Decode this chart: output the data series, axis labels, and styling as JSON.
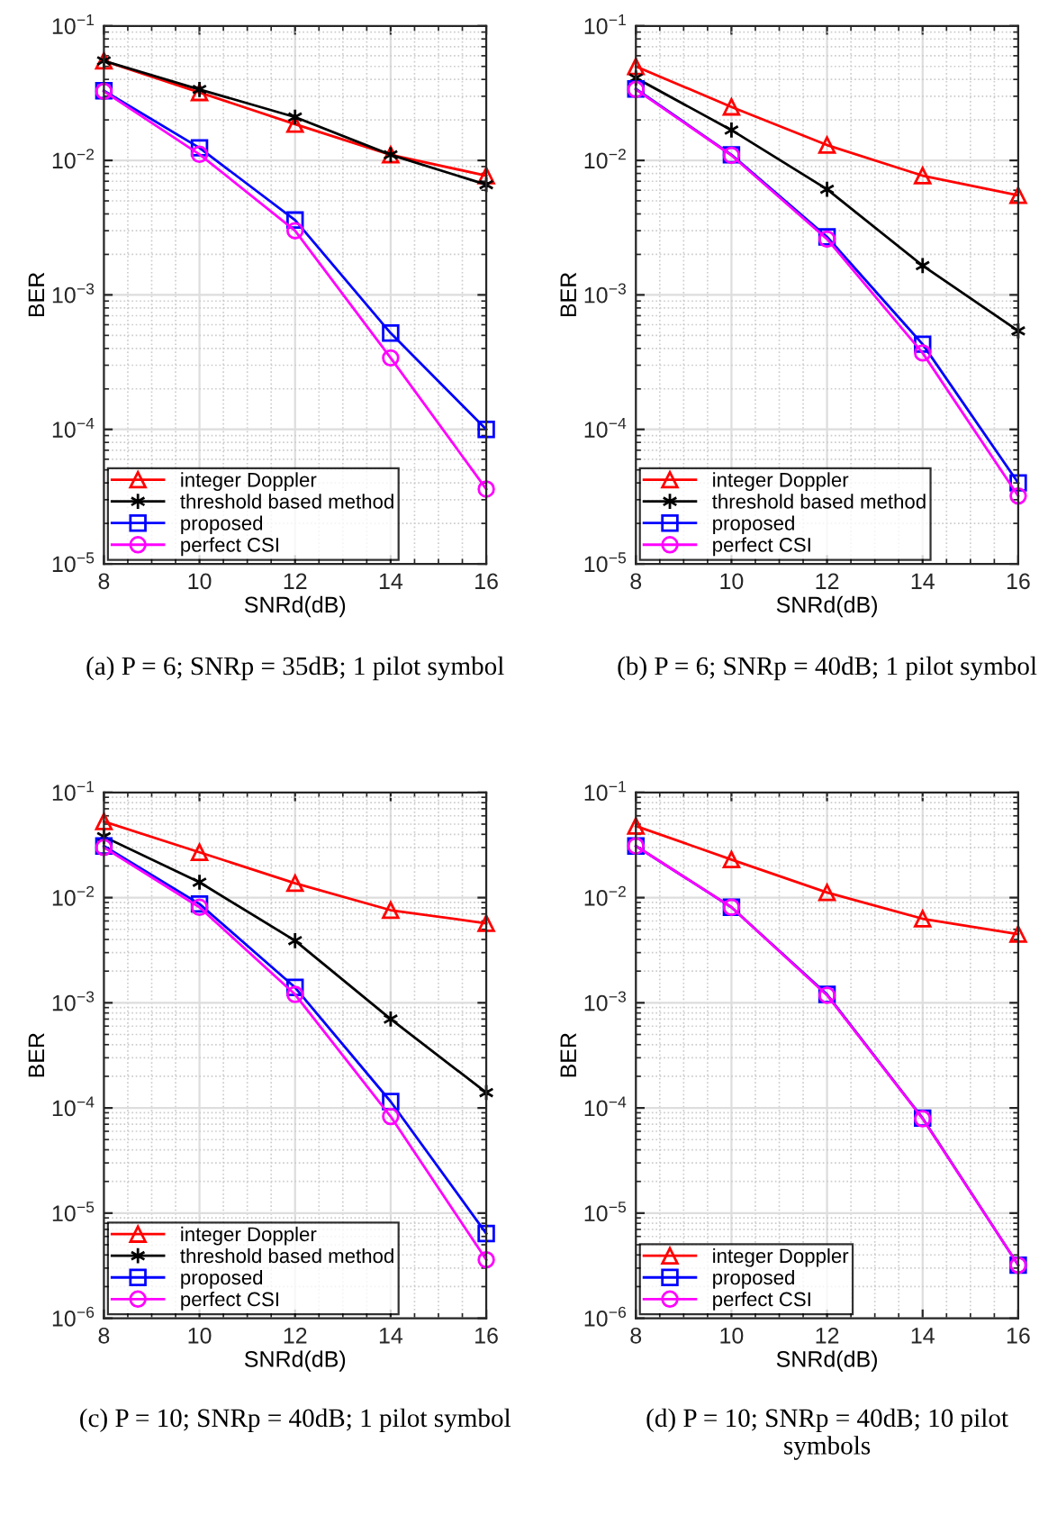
{
  "chart_data": [
    {
      "type": "line",
      "title": "(a) P = 6; SNRp = 35dB; 1 pilot symbol",
      "xlabel": "SNRd(dB)",
      "ylabel": "BER",
      "log": "y",
      "grid": true,
      "legend": "bottom left",
      "line_style": "solid",
      "x": [
        8,
        10,
        12,
        14,
        16
      ],
      "xlim": [
        8,
        16
      ],
      "xticks": [
        8,
        10,
        12,
        14,
        16
      ],
      "ylim": [
        1e-05,
        0.1
      ],
      "yticks": [
        {
          "value": 1e-05,
          "label": "10$^{−5}$"
        },
        {
          "value": 0.0001,
          "label": "10$^{−4}$"
        },
        {
          "value": 0.001,
          "label": "10$^{−3}$"
        },
        {
          "value": 0.01,
          "label": "10$^{−2}$"
        },
        {
          "value": 0.1,
          "label": "10$^{−1}$"
        }
      ],
      "series": [
        {
          "name": "integer Doppler",
          "color": "#ff0000",
          "marker": "triangle",
          "values": [
            0.055,
            0.032,
            0.0186,
            0.011,
            0.0077
          ]
        },
        {
          "name": "threshold based method",
          "color": "#000000",
          "marker": "cross",
          "values": [
            0.055,
            0.0337,
            0.021,
            0.011,
            0.0066
          ]
        },
        {
          "name": "proposed",
          "color": "#0000ff",
          "marker": "square",
          "values": [
            0.033,
            0.0124,
            0.0036,
            0.00052,
            0.0001
          ]
        },
        {
          "name": "perfect CSI",
          "color": "#ff00ff",
          "marker": "circle",
          "values": [
            0.0326,
            0.0111,
            0.003,
            0.00034,
            3.6e-05
          ]
        }
      ]
    },
    {
      "type": "line",
      "title": "(b) P = 6; SNRp = 40dB; 1 pilot symbol",
      "xlabel": "SNRd(dB)",
      "ylabel": "BER",
      "log": "y",
      "grid": true,
      "legend": "bottom left",
      "line_style": "solid",
      "x": [
        8,
        10,
        12,
        14,
        16
      ],
      "xlim": [
        8,
        16
      ],
      "xticks": [
        8,
        10,
        12,
        14,
        16
      ],
      "ylim": [
        1e-05,
        0.1
      ],
      "yticks": [
        {
          "value": 1e-05,
          "label": "10$^{−5}$"
        },
        {
          "value": 0.0001,
          "label": "10$^{−4}$"
        },
        {
          "value": 0.001,
          "label": "10$^{−3}$"
        },
        {
          "value": 0.01,
          "label": "10$^{−2}$"
        },
        {
          "value": 0.1,
          "label": "10$^{−1}$"
        }
      ],
      "series": [
        {
          "name": "integer Doppler",
          "color": "#ff0000",
          "marker": "triangle",
          "values": [
            0.05,
            0.025,
            0.013,
            0.0077,
            0.0055
          ]
        },
        {
          "name": "threshold based method",
          "color": "#000000",
          "marker": "cross",
          "values": [
            0.041,
            0.0168,
            0.0061,
            0.00165,
            0.00054
          ]
        },
        {
          "name": "proposed",
          "color": "#0000ff",
          "marker": "square",
          "values": [
            0.034,
            0.011,
            0.0027,
            0.00043,
            4e-05
          ]
        },
        {
          "name": "perfect CSI",
          "color": "#ff00ff",
          "marker": "circle",
          "values": [
            0.0337,
            0.0109,
            0.0026,
            0.00037,
            3.2e-05
          ]
        }
      ]
    },
    {
      "type": "line",
      "title": "(c) P = 10; SNRp = 40dB; 1 pilot symbol",
      "xlabel": "SNRd(dB)",
      "ylabel": "BER",
      "log": "y",
      "grid": true,
      "legend": "bottom left",
      "line_style": "solid",
      "x": [
        8,
        10,
        12,
        14,
        16
      ],
      "xlim": [
        8,
        16
      ],
      "xticks": [
        8,
        10,
        12,
        14,
        16
      ],
      "ylim": [
        1e-06,
        0.1
      ],
      "yticks": [
        {
          "value": 1e-06,
          "label": "10$^{−6}$"
        },
        {
          "value": 1e-05,
          "label": "10$^{−5}$"
        },
        {
          "value": 0.0001,
          "label": "10$^{−4}$"
        },
        {
          "value": 0.001,
          "label": "10$^{−3}$"
        },
        {
          "value": 0.01,
          "label": "10$^{−2}$"
        },
        {
          "value": 0.1,
          "label": "10$^{−1}$"
        }
      ],
      "series": [
        {
          "name": "integer Doppler",
          "color": "#ff0000",
          "marker": "triangle",
          "values": [
            0.053,
            0.027,
            0.0137,
            0.0076,
            0.0057
          ]
        },
        {
          "name": "threshold based method",
          "color": "#000000",
          "marker": "cross",
          "values": [
            0.038,
            0.014,
            0.0039,
            0.0007,
            0.00014
          ]
        },
        {
          "name": "proposed",
          "color": "#0000ff",
          "marker": "square",
          "values": [
            0.031,
            0.0087,
            0.0014,
            0.000115,
            6.4e-06
          ]
        },
        {
          "name": "perfect CSI",
          "color": "#ff00ff",
          "marker": "circle",
          "values": [
            0.03,
            0.0081,
            0.0012,
            8.3e-05,
            3.6e-06
          ]
        }
      ]
    },
    {
      "type": "line",
      "title": "(d) P = 10; SNRp = 40dB; 10 pilot symbols",
      "xlabel": "SNRd(dB)",
      "ylabel": "BER",
      "log": "y",
      "grid": true,
      "legend": "bottom left",
      "line_style": "solid",
      "x": [
        8,
        10,
        12,
        14,
        16
      ],
      "xlim": [
        8,
        16
      ],
      "xticks": [
        8,
        10,
        12,
        14,
        16
      ],
      "ylim": [
        1e-06,
        0.1
      ],
      "yticks": [
        {
          "value": 1e-06,
          "label": "10$^{−6}$"
        },
        {
          "value": 1e-05,
          "label": "10$^{−5}$"
        },
        {
          "value": 0.0001,
          "label": "10$^{−4}$"
        },
        {
          "value": 0.001,
          "label": "10$^{−3}$"
        },
        {
          "value": 0.01,
          "label": "10$^{−2}$"
        },
        {
          "value": 0.1,
          "label": "10$^{−1}$"
        }
      ],
      "series": [
        {
          "name": "integer Doppler",
          "color": "#ff0000",
          "marker": "triangle",
          "values": [
            0.048,
            0.023,
            0.0112,
            0.0063,
            0.0045
          ]
        },
        {
          "name": "proposed",
          "color": "#0000ff",
          "marker": "square",
          "values": [
            0.031,
            0.0081,
            0.0012,
            8e-05,
            3.2e-06
          ]
        },
        {
          "name": "perfect CSI",
          "color": "#ff00ff",
          "marker": "circle",
          "values": [
            0.031,
            0.0081,
            0.00118,
            7.9e-05,
            3.2e-06
          ]
        }
      ]
    }
  ]
}
